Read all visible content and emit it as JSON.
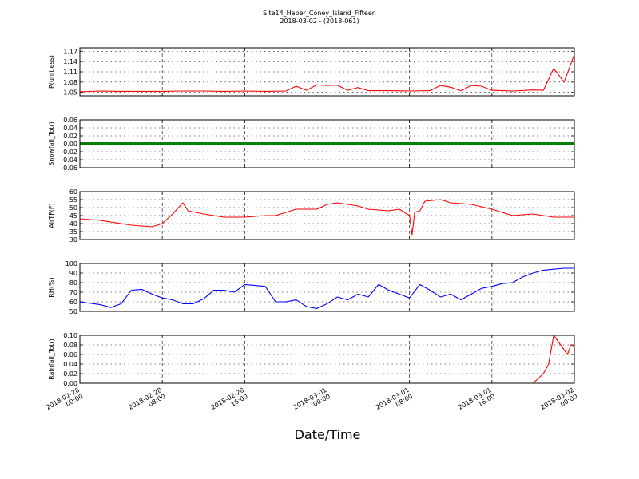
{
  "header": {
    "title": "Site14_Haber_Coney_Island_Fifteen",
    "subtitle": "2018-03-02 - (2018-061)"
  },
  "chart_data": [
    {
      "type": "line",
      "ylabel": "P(unitless)",
      "ylim": [
        1.04,
        1.18
      ],
      "yticks": [
        "1.05",
        "1.08",
        "1.11",
        "1.14",
        "1.17"
      ],
      "grid": true,
      "color": "#ff0000",
      "x": [
        "2018-02-28 00:00",
        "2018-02-28 02:00",
        "2018-02-28 04:00",
        "2018-02-28 06:00",
        "2018-02-28 08:00",
        "2018-02-28 10:00",
        "2018-02-28 12:00",
        "2018-02-28 14:00",
        "2018-02-28 16:00",
        "2018-02-28 18:00",
        "2018-02-28 20:00",
        "2018-02-28 21:00",
        "2018-02-28 22:00",
        "2018-02-28 23:00",
        "2018-03-01 00:00",
        "2018-03-01 01:00",
        "2018-03-01 02:00",
        "2018-03-01 03:00",
        "2018-03-01 04:00",
        "2018-03-01 06:00",
        "2018-03-01 08:00",
        "2018-03-01 10:00",
        "2018-03-01 11:00",
        "2018-03-01 12:00",
        "2018-03-01 13:00",
        "2018-03-01 14:00",
        "2018-03-01 15:00",
        "2018-03-01 16:00",
        "2018-03-01 18:00",
        "2018-03-01 20:00",
        "2018-03-01 21:00",
        "2018-03-01 22:00",
        "2018-03-01 23:00",
        "2018-03-02 00:00"
      ],
      "y": [
        1.052,
        1.054,
        1.053,
        1.053,
        1.053,
        1.054,
        1.054,
        1.053,
        1.054,
        1.053,
        1.054,
        1.068,
        1.056,
        1.072,
        1.07,
        1.071,
        1.056,
        1.064,
        1.055,
        1.055,
        1.054,
        1.055,
        1.07,
        1.065,
        1.055,
        1.07,
        1.068,
        1.056,
        1.054,
        1.057,
        1.056,
        1.12,
        1.08,
        1.16
      ]
    },
    {
      "type": "line",
      "ylabel": "Snowfall_Tot()",
      "ylim": [
        -0.06,
        0.06
      ],
      "yticks": [
        "-0.06",
        "-0.04",
        "-0.02",
        "0.00",
        "0.02",
        "0.04",
        "0.06"
      ],
      "grid": true,
      "color": "#008000",
      "x": [
        "2018-02-28 00:00",
        "2018-03-02 00:00"
      ],
      "y": [
        0,
        0
      ]
    },
    {
      "type": "line",
      "ylabel": "AirTF(F)",
      "ylim": [
        30,
        60
      ],
      "yticks": [
        "30",
        "35",
        "40",
        "45",
        "50",
        "55",
        "60"
      ],
      "grid": true,
      "color": "#ff0000",
      "x": [
        "2018-02-28 00:00",
        "2018-02-28 02:00",
        "2018-02-28 04:00",
        "2018-02-28 05:00",
        "2018-02-28 07:00",
        "2018-02-28 08:00",
        "2018-02-28 09:00",
        "2018-02-28 10:00",
        "2018-02-28 10:30",
        "2018-02-28 12:00",
        "2018-02-28 14:00",
        "2018-02-28 16:00",
        "2018-02-28 18:00",
        "2018-02-28 19:00",
        "2018-02-28 21:00",
        "2018-02-28 23:00",
        "2018-03-01 00:00",
        "2018-03-01 01:00",
        "2018-03-01 02:00",
        "2018-03-01 03:00",
        "2018-03-01 04:00",
        "2018-03-01 06:00",
        "2018-03-01 07:00",
        "2018-03-01 08:00",
        "2018-03-01 08:15",
        "2018-03-01 08:30",
        "2018-03-01 09:00",
        "2018-03-01 09:30",
        "2018-03-01 11:00",
        "2018-03-01 12:00",
        "2018-03-01 14:00",
        "2018-03-01 16:00",
        "2018-03-01 18:00",
        "2018-03-01 20:00",
        "2018-03-01 22:00",
        "2018-03-02 00:00"
      ],
      "y": [
        43,
        42,
        40,
        39,
        38,
        40,
        46,
        53,
        48,
        46,
        44,
        44,
        45,
        45,
        49,
        49,
        52,
        53,
        52,
        51,
        49,
        48,
        49,
        45,
        33,
        47,
        48,
        54,
        55,
        53,
        52,
        49,
        45,
        46,
        44,
        44
      ]
    },
    {
      "type": "line",
      "ylabel": "RH(%)",
      "ylim": [
        50,
        100
      ],
      "yticks": [
        "50",
        "60",
        "70",
        "80",
        "90",
        "100"
      ],
      "grid": true,
      "color": "#0000ff",
      "x": [
        "2018-02-28 00:00",
        "2018-02-28 02:00",
        "2018-02-28 03:00",
        "2018-02-28 04:00",
        "2018-02-28 05:00",
        "2018-02-28 06:00",
        "2018-02-28 07:00",
        "2018-02-28 08:00",
        "2018-02-28 09:00",
        "2018-02-28 10:00",
        "2018-02-28 11:00",
        "2018-02-28 12:00",
        "2018-02-28 13:00",
        "2018-02-28 14:00",
        "2018-02-28 15:00",
        "2018-02-28 16:00",
        "2018-02-28 17:00",
        "2018-02-28 18:00",
        "2018-02-28 19:00",
        "2018-02-28 20:00",
        "2018-02-28 21:00",
        "2018-02-28 22:00",
        "2018-02-28 23:00",
        "2018-03-01 00:00",
        "2018-03-01 01:00",
        "2018-03-01 02:00",
        "2018-03-01 03:00",
        "2018-03-01 04:00",
        "2018-03-01 05:00",
        "2018-03-01 06:00",
        "2018-03-01 07:00",
        "2018-03-01 08:00",
        "2018-03-01 09:00",
        "2018-03-01 10:00",
        "2018-03-01 11:00",
        "2018-03-01 12:00",
        "2018-03-01 13:00",
        "2018-03-01 14:00",
        "2018-03-01 15:00",
        "2018-03-01 16:00",
        "2018-03-01 17:00",
        "2018-03-01 18:00",
        "2018-03-01 19:00",
        "2018-03-01 20:00",
        "2018-03-01 21:00",
        "2018-03-01 22:00",
        "2018-03-01 23:00",
        "2018-03-02 00:00"
      ],
      "y": [
        60,
        57,
        54,
        58,
        72,
        73,
        68,
        64,
        62,
        58,
        58,
        63,
        72,
        72,
        70,
        78,
        77,
        76,
        60,
        60,
        62,
        55,
        53,
        58,
        65,
        62,
        68,
        65,
        78,
        72,
        68,
        64,
        78,
        72,
        65,
        68,
        62,
        68,
        74,
        76,
        79,
        80,
        86,
        90,
        93,
        94,
        95,
        95
      ]
    },
    {
      "type": "line",
      "ylabel": "Rainfall_Tot()",
      "ylim": [
        0,
        0.1
      ],
      "yticks": [
        "0.00",
        "0.02",
        "0.04",
        "0.06",
        "0.08",
        "0.10"
      ],
      "grid": true,
      "color": "#ff0000",
      "x": [
        "2018-02-28 00:00",
        "2018-03-01 20:00",
        "2018-03-01 21:00",
        "2018-03-01 21:30",
        "2018-03-01 22:00",
        "2018-03-01 22:20",
        "2018-03-01 22:40",
        "2018-03-01 23:00",
        "2018-03-01 23:20",
        "2018-03-01 23:40",
        "2018-03-02 00:00"
      ],
      "y": [
        0,
        0,
        0.02,
        0.04,
        0.1,
        0.09,
        0.08,
        0.07,
        0.06,
        0.08,
        0.075
      ]
    }
  ],
  "xaxis": {
    "xlabel": "Date/Time",
    "start": "2018-02-28 00:00",
    "end": "2018-03-02 00:00",
    "ticks": [
      {
        "date": "2018-02-28",
        "time": "00:00",
        "at": "2018-02-28 00:00"
      },
      {
        "date": "2018-02-28",
        "time": "08:00",
        "at": "2018-02-28 08:00"
      },
      {
        "date": "2018-02-28",
        "time": "16:00",
        "at": "2018-02-28 16:00"
      },
      {
        "date": "2018-03-01",
        "time": "00:00",
        "at": "2018-03-01 00:00"
      },
      {
        "date": "2018-03-01",
        "time": "08:00",
        "at": "2018-03-01 08:00"
      },
      {
        "date": "2018-03-01",
        "time": "16:00",
        "at": "2018-03-01 16:00"
      },
      {
        "date": "2018-03-02",
        "time": "00:00",
        "at": "2018-03-02 00:00"
      }
    ]
  }
}
